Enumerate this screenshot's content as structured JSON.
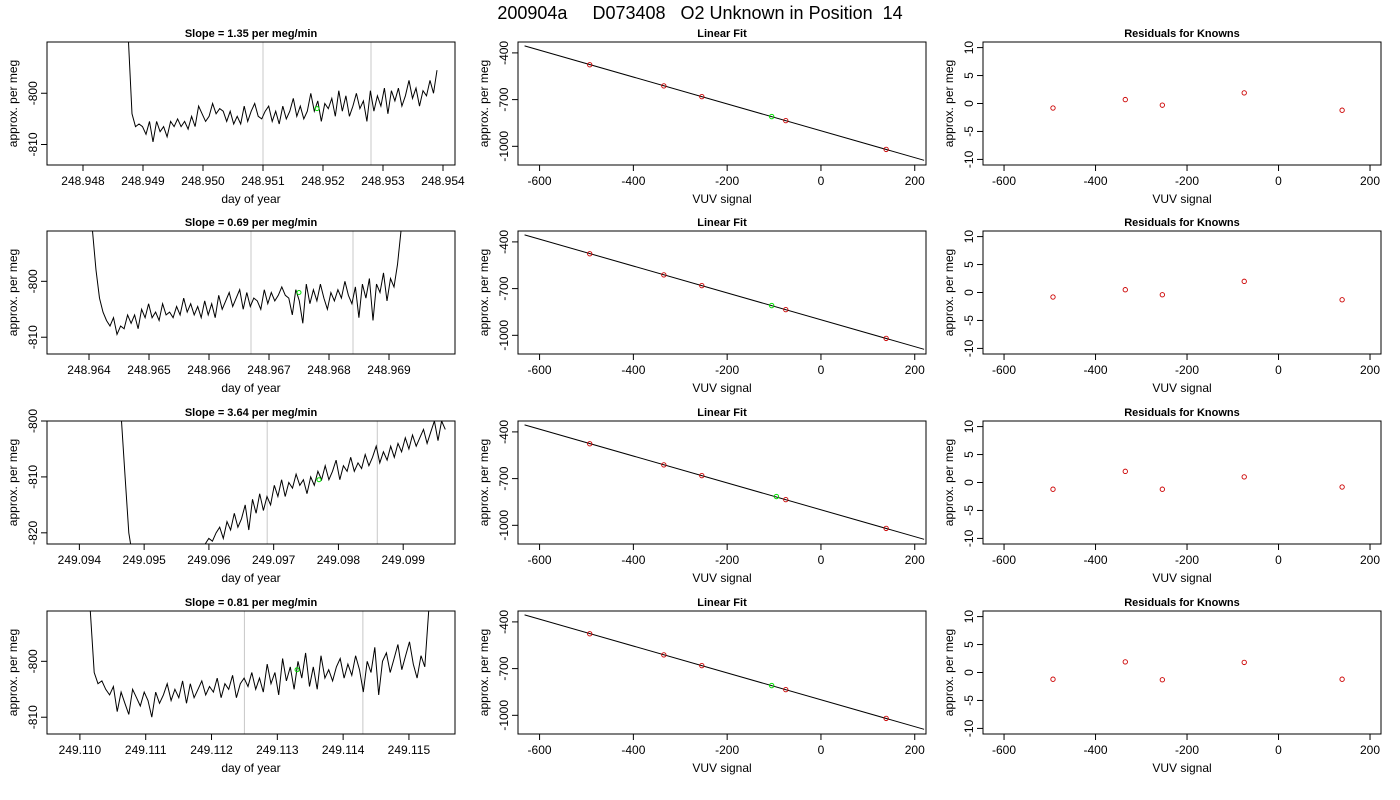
{
  "page_title": "200904a     D073408   O2 Unknown in Position  14",
  "colors": {
    "line": "#000000",
    "marker_unknown": "#00dd00",
    "marker_known": "#cc0000",
    "vertical_marker": "#c8c8c8"
  },
  "chart_data": [
    {
      "type": "line",
      "panel": "time-series-1",
      "title": "Slope =  1.35  per meg/min",
      "xlabel": "day of year",
      "ylabel": "approx. per meg",
      "xlim": [
        248.9474,
        248.9542
      ],
      "ylim": [
        -814,
        -790
      ],
      "xticks": [
        248.948,
        248.949,
        248.95,
        248.951,
        248.952,
        248.953,
        248.954
      ],
      "xtick_labels": [
        "248.948",
        "248.949",
        "248.950",
        "248.951",
        "248.952",
        "248.953",
        "248.954"
      ],
      "yticks": [
        -800,
        -810
      ],
      "ytick_labels": [
        "-800",
        "-810"
      ],
      "vlines": [
        248.951,
        248.9528
      ],
      "series_x_start": 248.9487,
      "series_x_end": 248.9539,
      "series": [
        -790,
        -790,
        -804,
        -806.5,
        -806,
        -806.5,
        -808,
        -805.5,
        -809.5,
        -805.5,
        -807.5,
        -806.5,
        -808.5,
        -805.5,
        -806.5,
        -805,
        -806.5,
        -805.5,
        -807,
        -804.5,
        -806.5,
        -802.5,
        -804,
        -805.5,
        -804.5,
        -802,
        -804,
        -803,
        -803.5,
        -805.5,
        -803.5,
        -806,
        -804.5,
        -806,
        -802.5,
        -805.5,
        -803.5,
        -802,
        -804.5,
        -805,
        -803.5,
        -802.5,
        -805.5,
        -803.5,
        -806,
        -802.5,
        -805,
        -803.5,
        -801,
        -804.5,
        -802.5,
        -805,
        -803.5,
        -800,
        -803.5,
        -801.5,
        -805.5,
        -802,
        -803,
        -801,
        -804.5,
        -799.5,
        -803.5,
        -800.5,
        -804.5,
        -802.5,
        -800,
        -803,
        -801.5,
        -805.5,
        -799.5,
        -803.5,
        -800.5,
        -802.5,
        -799,
        -804,
        -799.5,
        -801.5,
        -799,
        -802.5,
        -800.5,
        -797.5,
        -801,
        -799,
        -802.5,
        -799.5,
        -800.5,
        -797.5,
        -800,
        -795.5
      ],
      "marker": {
        "x": 248.9519,
        "y": -803
      }
    },
    {
      "type": "scatter",
      "panel": "linear-fit-1",
      "title": "Linear Fit",
      "xlabel": "VUV signal",
      "ylabel": "approx. per meg",
      "xlim": [
        -646,
        224
      ],
      "ylim": [
        -1120,
        -330
      ],
      "xticks": [
        -600,
        -400,
        -200,
        0,
        200
      ],
      "xtick_labels": [
        "-600",
        "-400",
        "-200",
        "0",
        "200"
      ],
      "yticks": [
        -400,
        -700,
        -1000
      ],
      "ytick_labels": [
        "-400",
        "-700",
        "-1000"
      ],
      "fit_line": {
        "x": [
          -632,
          220
        ],
        "y": [
          -355,
          -1090
        ]
      },
      "knowns": {
        "x": [
          -493,
          -335,
          -254,
          -75,
          139
        ],
        "y": [
          -476,
          -612,
          -681,
          -835,
          -1020
        ]
      },
      "unknown": {
        "x": -105,
        "y": -809
      }
    },
    {
      "type": "scatter",
      "panel": "residuals-1",
      "title": "Residuals for Knowns",
      "xlabel": "VUV signal",
      "ylabel": "approx. per meg",
      "xlim": [
        -646,
        224
      ],
      "ylim": [
        -11,
        11
      ],
      "xticks": [
        -600,
        -400,
        -200,
        0,
        200
      ],
      "xtick_labels": [
        "-600",
        "-400",
        "-200",
        "0",
        "200"
      ],
      "yticks": [
        10,
        5,
        0,
        -5,
        -10
      ],
      "ytick_labels": [
        "10",
        "5",
        "0",
        "-5",
        "-10"
      ],
      "knowns": {
        "x": [
          -493,
          -335,
          -254,
          -75,
          139
        ],
        "y": [
          -0.8,
          0.7,
          -0.3,
          1.9,
          -1.2
        ]
      }
    },
    {
      "type": "line",
      "panel": "time-series-2",
      "title": "Slope =  0.69  per meg/min",
      "xlabel": "day of year",
      "ylabel": "approx. per meg",
      "xlim": [
        248.9633,
        248.9701
      ],
      "ylim": [
        -813,
        -791
      ],
      "xticks": [
        248.964,
        248.965,
        248.966,
        248.967,
        248.968,
        248.969
      ],
      "xtick_labels": [
        "248.964",
        "248.965",
        "248.966",
        "248.967",
        "248.968",
        "248.969"
      ],
      "yticks": [
        -800,
        -810
      ],
      "ytick_labels": [
        "-800",
        "-810"
      ],
      "vlines": [
        248.9667,
        248.9684
      ],
      "series_x_start": 248.964,
      "series_x_end": 248.9692,
      "series": [
        -791,
        -791,
        -798,
        -803,
        -805.5,
        -807,
        -808,
        -806.5,
        -809.5,
        -808,
        -808.5,
        -806,
        -807.5,
        -806,
        -808.5,
        -805,
        -806.5,
        -804,
        -806.5,
        -805.5,
        -807,
        -804,
        -806,
        -805.5,
        -806.5,
        -804.5,
        -806,
        -803,
        -805.5,
        -804,
        -806,
        -804.5,
        -806.5,
        -803.5,
        -806,
        -804,
        -806.5,
        -802.5,
        -805,
        -803.5,
        -802,
        -804.5,
        -803,
        -801.5,
        -805,
        -802,
        -804.5,
        -803,
        -803.5,
        -805,
        -801.5,
        -804,
        -802,
        -803.5,
        -802.5,
        -801,
        -802.5,
        -803,
        -806,
        -801.5,
        -803.5,
        -807.5,
        -800.5,
        -804,
        -801.5,
        -803.5,
        -800.5,
        -803,
        -805,
        -802,
        -803.5,
        -801.5,
        -803,
        -800,
        -802.5,
        -804,
        -801,
        -806.5,
        -800.5,
        -803,
        -799.5,
        -807,
        -800.5,
        -802,
        -798.5,
        -803.5,
        -799.5,
        -801,
        -797,
        -791
      ],
      "marker": {
        "x": 248.9675,
        "y": -802
      }
    },
    {
      "type": "scatter",
      "panel": "linear-fit-2",
      "title": "Linear Fit",
      "xlabel": "VUV signal",
      "ylabel": "approx. per meg",
      "xlim": [
        -646,
        224
      ],
      "ylim": [
        -1120,
        -330
      ],
      "xticks": [
        -600,
        -400,
        -200,
        0,
        200
      ],
      "xtick_labels": [
        "-600",
        "-400",
        "-200",
        "0",
        "200"
      ],
      "yticks": [
        -400,
        -700,
        -1000
      ],
      "ytick_labels": [
        "-400",
        "-700",
        "-1000"
      ],
      "fit_line": {
        "x": [
          -632,
          220
        ],
        "y": [
          -355,
          -1090
        ]
      },
      "knowns": {
        "x": [
          -493,
          -335,
          -254,
          -75,
          139
        ],
        "y": [
          -476,
          -612,
          -681,
          -835,
          -1020
        ]
      },
      "unknown": {
        "x": -105,
        "y": -809
      }
    },
    {
      "type": "scatter",
      "panel": "residuals-2",
      "title": "Residuals for Knowns",
      "xlabel": "VUV signal",
      "ylabel": "approx. per meg",
      "xlim": [
        -646,
        224
      ],
      "ylim": [
        -11,
        11
      ],
      "xticks": [
        -600,
        -400,
        -200,
        0,
        200
      ],
      "xtick_labels": [
        "-600",
        "-400",
        "-200",
        "0",
        "200"
      ],
      "yticks": [
        10,
        5,
        0,
        -5,
        -10
      ],
      "ytick_labels": [
        "10",
        "5",
        "0",
        "-5",
        "-10"
      ],
      "knowns": {
        "x": [
          -493,
          -335,
          -254,
          -75,
          139
        ],
        "y": [
          -0.8,
          0.5,
          -0.4,
          2.0,
          -1.3
        ]
      }
    },
    {
      "type": "line",
      "panel": "time-series-3",
      "title": "Slope =  3.64  per meg/min",
      "xlabel": "day of year",
      "ylabel": "approx. per meg",
      "xlim": [
        249.0935,
        249.0998
      ],
      "ylim": [
        -822,
        -800
      ],
      "xticks": [
        249.094,
        249.095,
        249.096,
        249.097,
        249.098,
        249.099
      ],
      "xtick_labels": [
        "249.094",
        "249.095",
        "249.096",
        "249.097",
        "249.098",
        "249.099"
      ],
      "yticks": [
        -800,
        -810,
        -820
      ],
      "ytick_labels": [
        "-800",
        "-810",
        "-820"
      ],
      "vlines": [
        249.0969,
        249.0986
      ],
      "series_x_start": 249.09465,
      "series_x_end": 249.09965,
      "series": [
        -800,
        -810,
        -820,
        -824,
        -824,
        -824,
        -824,
        -824,
        -824,
        -824,
        -824,
        -824,
        -824,
        -824,
        -824,
        -824,
        -824,
        -824,
        -824,
        -824,
        -824,
        -824,
        -823,
        -822,
        -821,
        -821.5,
        -820,
        -819,
        -821,
        -818,
        -819.5,
        -816.5,
        -819,
        -817.5,
        -815,
        -819.5,
        -814,
        -816.5,
        -813,
        -816,
        -813.5,
        -815,
        -811.5,
        -813.5,
        -810.5,
        -813.5,
        -811,
        -812,
        -809.5,
        -811.5,
        -810.5,
        -813,
        -810,
        -811.5,
        -809,
        -810.5,
        -808,
        -810.5,
        -809,
        -807,
        -810.5,
        -808,
        -809,
        -806.5,
        -809,
        -807.5,
        -808.5,
        -806,
        -808,
        -806.5,
        -804.5,
        -807.5,
        -805.5,
        -807,
        -804.5,
        -806.5,
        -804,
        -805.5,
        -803,
        -805,
        -802.5,
        -804.5,
        -803,
        -801.5,
        -804,
        -802,
        -800,
        -803.5,
        -800,
        -801.5
      ],
      "marker": {
        "x": 249.0977,
        "y": -810.5
      }
    },
    {
      "type": "scatter",
      "panel": "linear-fit-3",
      "title": "Linear Fit",
      "xlabel": "VUV signal",
      "ylabel": "approx. per meg",
      "xlim": [
        -646,
        224
      ],
      "ylim": [
        -1120,
        -330
      ],
      "xticks": [
        -600,
        -400,
        -200,
        0,
        200
      ],
      "xtick_labels": [
        "-600",
        "-400",
        "-200",
        "0",
        "200"
      ],
      "yticks": [
        -400,
        -700,
        -1000
      ],
      "ytick_labels": [
        "-400",
        "-700",
        "-1000"
      ],
      "fit_line": {
        "x": [
          -632,
          220
        ],
        "y": [
          -355,
          -1090
        ]
      },
      "knowns": {
        "x": [
          -493,
          -335,
          -254,
          -75,
          139
        ],
        "y": [
          -476,
          -612,
          -681,
          -835,
          -1020
        ]
      },
      "unknown": {
        "x": -95,
        "y": -815
      }
    },
    {
      "type": "scatter",
      "panel": "residuals-3",
      "title": "Residuals for Knowns",
      "xlabel": "VUV signal",
      "ylabel": "approx. per meg",
      "xlim": [
        -646,
        224
      ],
      "ylim": [
        -11,
        11
      ],
      "xticks": [
        -600,
        -400,
        -200,
        0,
        200
      ],
      "xtick_labels": [
        "-600",
        "-400",
        "-200",
        "0",
        "200"
      ],
      "yticks": [
        10,
        5,
        0,
        -5,
        -10
      ],
      "ytick_labels": [
        "10",
        "5",
        "0",
        "-5",
        "-10"
      ],
      "knowns": {
        "x": [
          -493,
          -335,
          -254,
          -75,
          139
        ],
        "y": [
          -1.2,
          2.0,
          -1.2,
          1.0,
          -0.8
        ]
      }
    },
    {
      "type": "line",
      "panel": "time-series-4",
      "title": "Slope =  0.81  per meg/min",
      "xlabel": "day of year",
      "ylabel": "approx. per meg",
      "xlim": [
        249.1095,
        249.1157
      ],
      "ylim": [
        -813,
        -791
      ],
      "xticks": [
        249.11,
        249.111,
        249.112,
        249.113,
        249.114,
        249.115
      ],
      "xtick_labels": [
        "249.110",
        "249.111",
        "249.112",
        "249.113",
        "249.114",
        "249.115"
      ],
      "yticks": [
        -800,
        -810
      ],
      "ytick_labels": [
        "-800",
        "-810"
      ],
      "vlines": [
        249.1125,
        249.1143
      ],
      "series_x_start": 249.1101,
      "series_x_end": 249.1153,
      "series": [
        -791,
        -791,
        -802,
        -804,
        -803.5,
        -805,
        -806,
        -804.5,
        -809,
        -805.5,
        -807.5,
        -809.5,
        -805,
        -806.5,
        -808,
        -805.5,
        -807,
        -810,
        -805.5,
        -807.5,
        -806,
        -804,
        -807,
        -805,
        -806.5,
        -803.5,
        -807.5,
        -804,
        -806.5,
        -805,
        -803.5,
        -806,
        -804.5,
        -805.5,
        -803,
        -806.5,
        -804,
        -805,
        -802.5,
        -806.5,
        -804,
        -803,
        -804.5,
        -802,
        -805,
        -803,
        -805.5,
        -800.5,
        -804,
        -802,
        -806,
        -799.5,
        -803.5,
        -801,
        -805,
        -800,
        -803,
        -798.5,
        -804.5,
        -801,
        -805,
        -799,
        -803,
        -801.5,
        -803.5,
        -801,
        -799.5,
        -803,
        -800.5,
        -802.5,
        -799,
        -801.5,
        -805.5,
        -800,
        -802,
        -797.5,
        -806,
        -800,
        -798.5,
        -802,
        -799.5,
        -797,
        -801.5,
        -799,
        -796.5,
        -800.5,
        -803,
        -799,
        -801,
        -791
      ],
      "marker": {
        "x": 249.1133,
        "y": -801.5
      }
    },
    {
      "type": "scatter",
      "panel": "linear-fit-4",
      "title": "Linear Fit",
      "xlabel": "VUV signal",
      "ylabel": "approx. per meg",
      "xlim": [
        -646,
        224
      ],
      "ylim": [
        -1120,
        -330
      ],
      "xticks": [
        -600,
        -400,
        -200,
        0,
        200
      ],
      "xtick_labels": [
        "-600",
        "-400",
        "-200",
        "0",
        "200"
      ],
      "yticks": [
        -400,
        -700,
        -1000
      ],
      "ytick_labels": [
        "-400",
        "-700",
        "-1000"
      ],
      "fit_line": {
        "x": [
          -632,
          220
        ],
        "y": [
          -355,
          -1090
        ]
      },
      "knowns": {
        "x": [
          -493,
          -335,
          -254,
          -75,
          139
        ],
        "y": [
          -476,
          -612,
          -681,
          -835,
          -1020
        ]
      },
      "unknown": {
        "x": -105,
        "y": -809
      }
    },
    {
      "type": "scatter",
      "panel": "residuals-4",
      "title": "Residuals for Knowns",
      "xlabel": "VUV signal",
      "ylabel": "approx. per meg",
      "xlim": [
        -646,
        224
      ],
      "ylim": [
        -11,
        11
      ],
      "xticks": [
        -600,
        -400,
        -200,
        0,
        200
      ],
      "xtick_labels": [
        "-600",
        "-400",
        "-200",
        "0",
        "200"
      ],
      "yticks": [
        10,
        5,
        0,
        -5,
        -10
      ],
      "ytick_labels": [
        "10",
        "5",
        "0",
        "-5",
        "-10"
      ],
      "knowns": {
        "x": [
          -493,
          -335,
          -254,
          -75,
          139
        ],
        "y": [
          -1.2,
          1.9,
          -1.3,
          1.8,
          -1.2
        ]
      }
    }
  ]
}
